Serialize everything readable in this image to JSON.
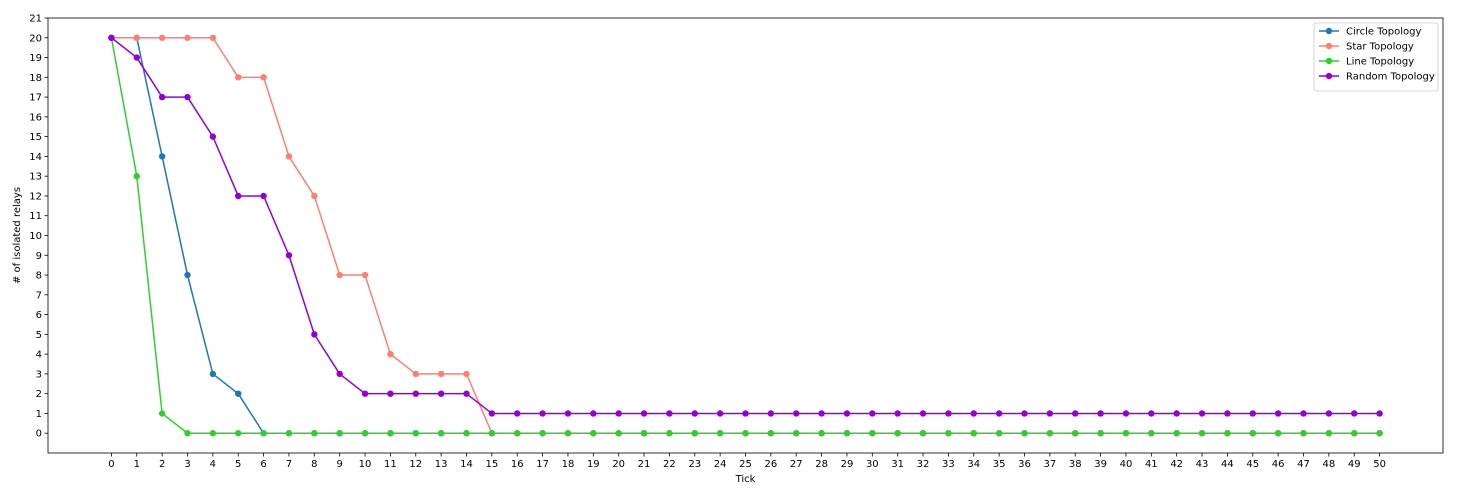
{
  "chart_data": {
    "type": "line",
    "title": "",
    "xlabel": "Tick",
    "ylabel": "# of isolated relays",
    "xlim": [
      -2.5,
      52.5
    ],
    "ylim": [
      -1,
      21
    ],
    "xticks": [
      0,
      1,
      2,
      3,
      4,
      5,
      6,
      7,
      8,
      9,
      10,
      11,
      12,
      13,
      14,
      15,
      16,
      17,
      18,
      19,
      20,
      21,
      22,
      23,
      24,
      25,
      26,
      27,
      28,
      29,
      30,
      31,
      32,
      33,
      34,
      35,
      36,
      37,
      38,
      39,
      40,
      41,
      42,
      43,
      44,
      45,
      46,
      47,
      48,
      49,
      50
    ],
    "yticks": [
      0,
      1,
      2,
      3,
      4,
      5,
      6,
      7,
      8,
      9,
      10,
      11,
      12,
      13,
      14,
      15,
      16,
      17,
      18,
      19,
      20,
      21
    ],
    "grid": false,
    "legend_position": "top-right",
    "series": [
      {
        "name": "Circle Topology",
        "color": "#1f77b4",
        "x": [
          0,
          1,
          2,
          3,
          4,
          5,
          6,
          7,
          8,
          9,
          10,
          11,
          12,
          13,
          14,
          15,
          16,
          17,
          18,
          19,
          20,
          21,
          22,
          23,
          24,
          25,
          26,
          27,
          28,
          29,
          30,
          31,
          32,
          33,
          34,
          35,
          36,
          37,
          38,
          39,
          40,
          41,
          42,
          43,
          44,
          45,
          46,
          47,
          48,
          49,
          50
        ],
        "values": [
          20,
          20,
          14,
          8,
          3,
          2,
          0,
          0,
          0,
          0,
          0,
          0,
          0,
          0,
          0,
          0,
          0,
          0,
          0,
          0,
          0,
          0,
          0,
          0,
          0,
          0,
          0,
          0,
          0,
          0,
          0,
          0,
          0,
          0,
          0,
          0,
          0,
          0,
          0,
          0,
          0,
          0,
          0,
          0,
          0,
          0,
          0,
          0,
          0,
          0,
          0
        ]
      },
      {
        "name": "Star Topology",
        "color": "#fa8072",
        "x": [
          0,
          1,
          2,
          3,
          4,
          5,
          6,
          7,
          8,
          9,
          10,
          11,
          12,
          13,
          14,
          15,
          16,
          17,
          18,
          19,
          20,
          21,
          22,
          23,
          24,
          25,
          26,
          27,
          28,
          29,
          30,
          31,
          32,
          33,
          34,
          35,
          36,
          37,
          38,
          39,
          40,
          41,
          42,
          43,
          44,
          45,
          46,
          47,
          48,
          49,
          50
        ],
        "values": [
          20,
          20,
          20,
          20,
          20,
          18,
          18,
          14,
          12,
          8,
          8,
          4,
          3,
          3,
          3,
          0,
          0,
          0,
          0,
          0,
          0,
          0,
          0,
          0,
          0,
          0,
          0,
          0,
          0,
          0,
          0,
          0,
          0,
          0,
          0,
          0,
          0,
          0,
          0,
          0,
          0,
          0,
          0,
          0,
          0,
          0,
          0,
          0,
          0,
          0,
          0
        ]
      },
      {
        "name": "Line Topology",
        "color": "#32cd32",
        "x": [
          0,
          1,
          2,
          3,
          4,
          5,
          6,
          7,
          8,
          9,
          10,
          11,
          12,
          13,
          14,
          15,
          16,
          17,
          18,
          19,
          20,
          21,
          22,
          23,
          24,
          25,
          26,
          27,
          28,
          29,
          30,
          31,
          32,
          33,
          34,
          35,
          36,
          37,
          38,
          39,
          40,
          41,
          42,
          43,
          44,
          45,
          46,
          47,
          48,
          49,
          50
        ],
        "values": [
          20,
          13,
          1,
          0,
          0,
          0,
          0,
          0,
          0,
          0,
          0,
          0,
          0,
          0,
          0,
          0,
          0,
          0,
          0,
          0,
          0,
          0,
          0,
          0,
          0,
          0,
          0,
          0,
          0,
          0,
          0,
          0,
          0,
          0,
          0,
          0,
          0,
          0,
          0,
          0,
          0,
          0,
          0,
          0,
          0,
          0,
          0,
          0,
          0,
          0,
          0
        ]
      },
      {
        "name": "Random Topology",
        "color": "#9400d3",
        "x": [
          0,
          1,
          2,
          3,
          4,
          5,
          6,
          7,
          8,
          9,
          10,
          11,
          12,
          13,
          14,
          15,
          16,
          17,
          18,
          19,
          20,
          21,
          22,
          23,
          24,
          25,
          26,
          27,
          28,
          29,
          30,
          31,
          32,
          33,
          34,
          35,
          36,
          37,
          38,
          39,
          40,
          41,
          42,
          43,
          44,
          45,
          46,
          47,
          48,
          49,
          50
        ],
        "values": [
          20,
          19,
          17,
          17,
          15,
          12,
          12,
          9,
          5,
          3,
          2,
          2,
          2,
          2,
          2,
          1,
          1,
          1,
          1,
          1,
          1,
          1,
          1,
          1,
          1,
          1,
          1,
          1,
          1,
          1,
          1,
          1,
          1,
          1,
          1,
          1,
          1,
          1,
          1,
          1,
          1,
          1,
          1,
          1,
          1,
          1,
          1,
          1,
          1,
          1,
          1
        ]
      }
    ]
  }
}
